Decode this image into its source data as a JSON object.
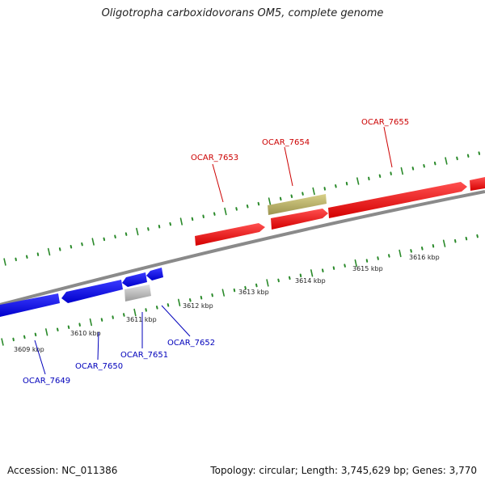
{
  "title": "Oligotropha carboxidovorans OM5, complete genome",
  "footer": {
    "accession": "Accession: NC_011386",
    "summary": "Topology: circular; Length: 3,745,629 bp; Genes: 3,770"
  },
  "colors": {
    "forward_gene": "#ff1a1a",
    "reverse_gene": "#1515ee",
    "other_gene": "#c0c0c0",
    "other_forward_feature": "#bdb76b",
    "backbone": "#808080",
    "tick": "#2a8a2a",
    "forward_label": "#cc0000",
    "reverse_label": "#0000bb"
  },
  "genome": {
    "tick_labels": [
      "3609 kbp",
      "3610 kbp",
      "3611 kbp",
      "3612 kbp",
      "3613 kbp",
      "3614 kbp",
      "3615 kbp",
      "3616 kbp"
    ]
  },
  "genes": [
    {
      "label": "OCAR_7649",
      "strand": "reverse"
    },
    {
      "label": "OCAR_7650",
      "strand": "reverse"
    },
    {
      "label": "OCAR_7651",
      "strand": "reverse"
    },
    {
      "label": "OCAR_7652",
      "strand": "reverse"
    },
    {
      "label": "OCAR_7653",
      "strand": "forward"
    },
    {
      "label": "OCAR_7654",
      "strand": "forward"
    },
    {
      "label": "OCAR_7655",
      "strand": "forward"
    }
  ]
}
